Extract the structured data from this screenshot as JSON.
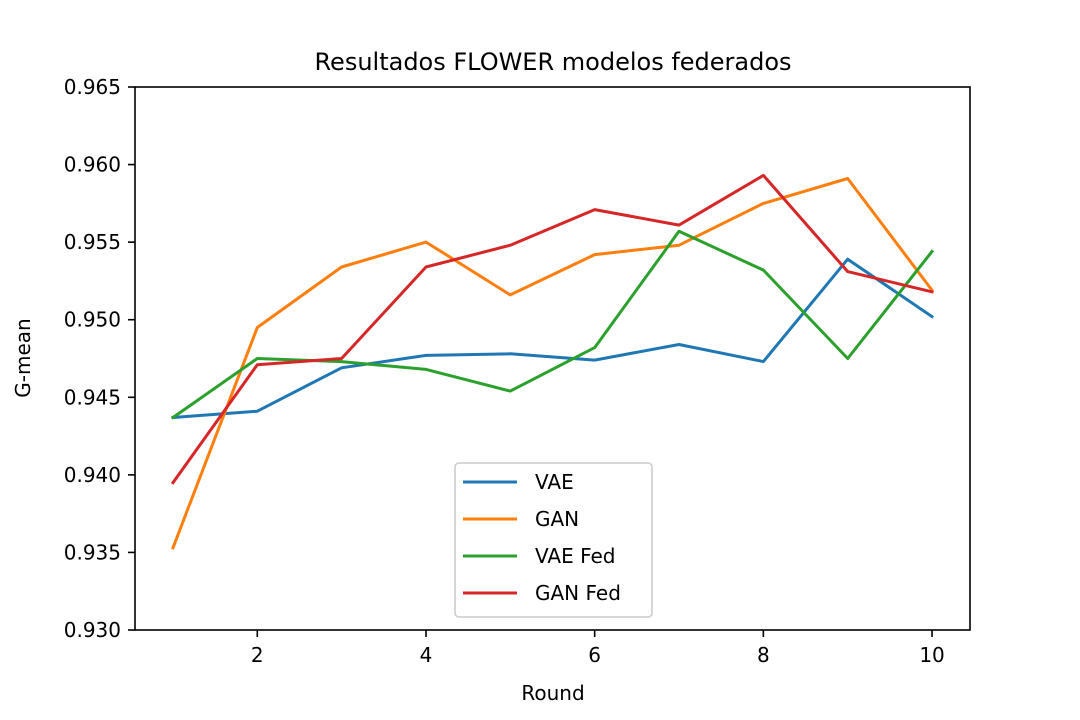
{
  "chart_data": {
    "type": "line",
    "title": "Resultados FLOWER modelos federados",
    "xlabel": "Round",
    "ylabel": "G-mean",
    "xlim": [
      0.55,
      10.45
    ],
    "ylim": [
      0.93,
      0.965
    ],
    "xticks": [
      2,
      4,
      6,
      8,
      10
    ],
    "yticks": [
      0.93,
      0.935,
      0.94,
      0.945,
      0.95,
      0.955,
      0.96,
      0.965
    ],
    "ytick_labels": [
      "0.930",
      "0.935",
      "0.940",
      "0.945",
      "0.950",
      "0.955",
      "0.960",
      "0.965"
    ],
    "grid": false,
    "legend_position": "lower center",
    "x": [
      1,
      2,
      3,
      4,
      5,
      6,
      7,
      8,
      9,
      10
    ],
    "series": [
      {
        "name": "VAE",
        "color": "#1f77b4",
        "values": [
          0.9437,
          0.9441,
          0.9469,
          0.9477,
          0.9478,
          0.9474,
          0.9484,
          0.9473,
          0.9539,
          0.9502
        ]
      },
      {
        "name": "GAN",
        "color": "#ff7f0e",
        "values": [
          0.9353,
          0.9495,
          0.9534,
          0.955,
          0.9516,
          0.9542,
          0.9548,
          0.9575,
          0.9591,
          0.9519
        ]
      },
      {
        "name": "VAE Fed",
        "color": "#2ca02c",
        "values": [
          0.9437,
          0.9475,
          0.9473,
          0.9468,
          0.9454,
          0.9482,
          0.9557,
          0.9532,
          0.9475,
          0.9544
        ]
      },
      {
        "name": "GAN Fed",
        "color": "#d62728",
        "values": [
          0.9395,
          0.9471,
          0.9475,
          0.9534,
          0.9548,
          0.9571,
          0.9561,
          0.9593,
          0.9531,
          0.9518
        ]
      }
    ]
  }
}
